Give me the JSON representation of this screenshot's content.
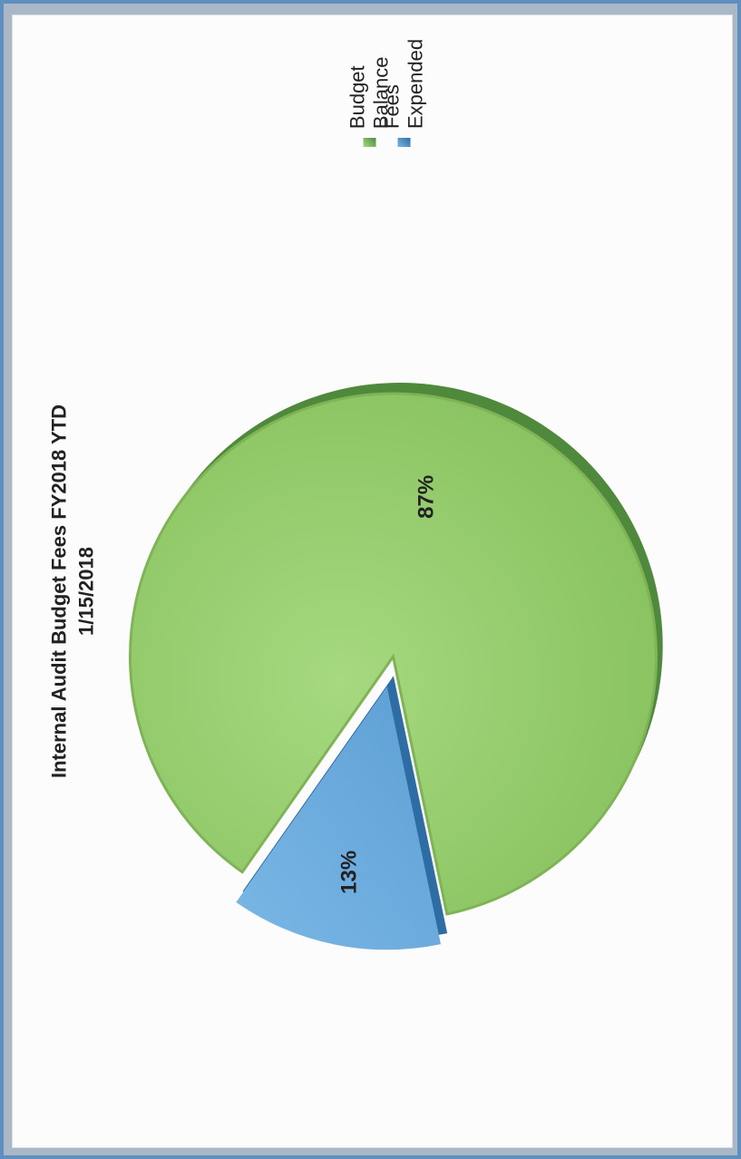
{
  "chart_data": {
    "type": "pie",
    "title": "Internal Audit Budget Fees FY2018 YTD",
    "subtitle": "1/15/2018",
    "slices": [
      {
        "name": "Budget Balance",
        "value": 87,
        "label": "87%",
        "color": "#8fc865"
      },
      {
        "name": "Fees Expended",
        "value": 13,
        "label": "13%",
        "color": "#5fa0d6"
      }
    ],
    "legend_position": "right",
    "legend": [
      "Budget Balance",
      "Fees Expended"
    ]
  },
  "colors": {
    "frame": "#5f8fbf",
    "green_dark": "#4f8a3c",
    "blue_dark": "#2e6da4"
  }
}
